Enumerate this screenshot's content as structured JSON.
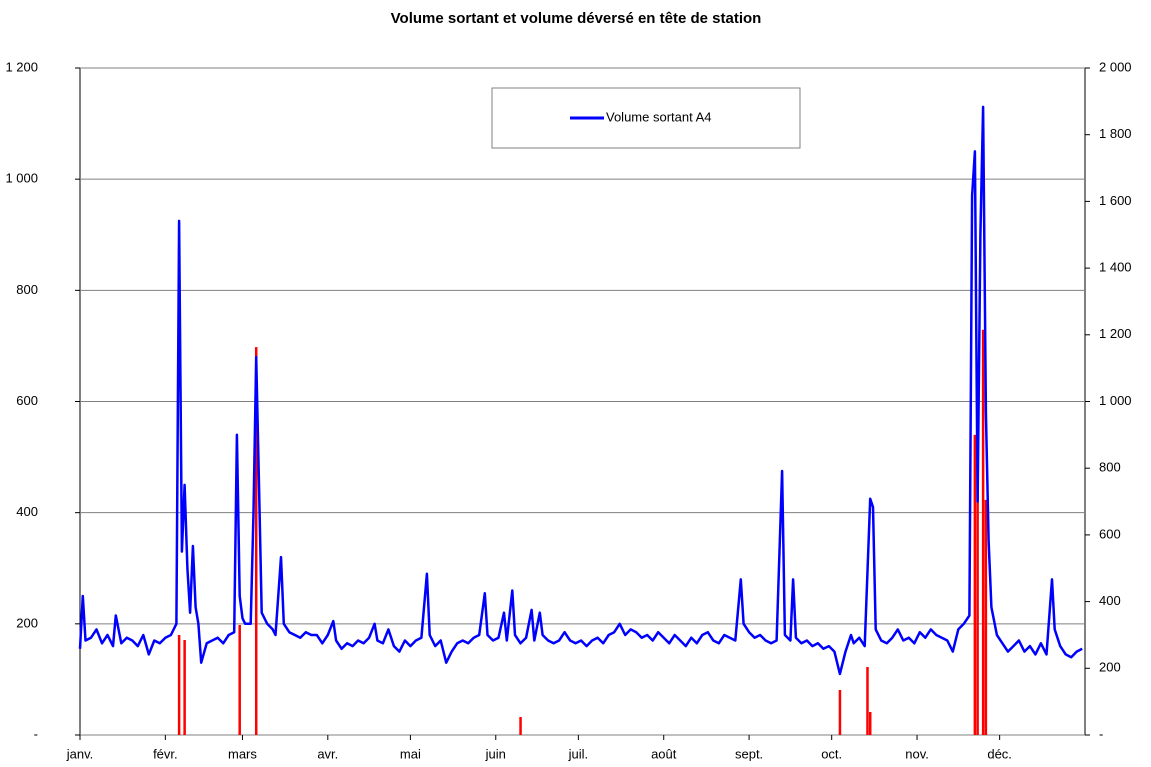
{
  "chart_data": {
    "type": "line",
    "title": "Volume sortant et volume déversé en tête de station",
    "xlim": [
      0,
      365
    ],
    "xticks": [
      {
        "value": 0,
        "label": "janv."
      },
      {
        "value": 31,
        "label": "févr."
      },
      {
        "value": 59,
        "label": "mars"
      },
      {
        "value": 90,
        "label": "avr."
      },
      {
        "value": 120,
        "label": "mai"
      },
      {
        "value": 151,
        "label": "juin"
      },
      {
        "value": 181,
        "label": "juil."
      },
      {
        "value": 212,
        "label": "août"
      },
      {
        "value": 243,
        "label": "sept."
      },
      {
        "value": 273,
        "label": "oct."
      },
      {
        "value": 304,
        "label": "nov."
      },
      {
        "value": 334,
        "label": "déc."
      }
    ],
    "ylim": [
      0,
      1200
    ],
    "yticks": [
      {
        "value": 0,
        "label": "-"
      },
      200,
      400,
      600,
      800,
      {
        "value": 1000,
        "label": "1 000"
      },
      {
        "value": 1200,
        "label": "1 200"
      }
    ],
    "y2lim": [
      0,
      2000
    ],
    "y2ticks": [
      {
        "value": 0,
        "label": "-"
      },
      200,
      400,
      600,
      800,
      {
        "value": 1000,
        "label": "1 000"
      },
      {
        "value": 1200,
        "label": "1 200"
      },
      {
        "value": 1400,
        "label": "1 400"
      },
      {
        "value": 1600,
        "label": "1 600"
      },
      {
        "value": 1800,
        "label": "1 800"
      },
      {
        "value": 2000,
        "label": "2 000"
      }
    ],
    "grid": true,
    "legend": "top",
    "series": [
      {
        "name": "Volume sortant A4",
        "color": "#0000ff",
        "x": [
          0,
          1,
          2,
          4,
          6,
          8,
          10,
          12,
          13,
          15,
          17,
          19,
          21,
          23,
          25,
          27,
          29,
          31,
          33,
          35,
          36,
          37,
          38,
          39,
          40,
          41,
          42,
          43,
          44,
          46,
          48,
          50,
          52,
          54,
          56,
          57,
          58,
          59,
          60,
          62,
          63,
          64,
          65,
          66,
          68,
          70,
          71,
          73,
          74,
          76,
          78,
          80,
          82,
          84,
          86,
          88,
          90,
          92,
          93,
          95,
          97,
          99,
          101,
          103,
          105,
          107,
          108,
          110,
          112,
          114,
          116,
          118,
          120,
          122,
          124,
          126,
          127,
          129,
          131,
          133,
          135,
          137,
          139,
          141,
          143,
          145,
          147,
          148,
          150,
          152,
          154,
          155,
          157,
          158,
          160,
          162,
          164,
          165,
          167,
          168,
          170,
          172,
          174,
          176,
          178,
          180,
          182,
          184,
          186,
          188,
          190,
          192,
          194,
          196,
          198,
          200,
          202,
          204,
          206,
          208,
          210,
          212,
          214,
          216,
          218,
          220,
          222,
          224,
          226,
          228,
          230,
          232,
          234,
          236,
          238,
          240,
          241,
          243,
          245,
          247,
          249,
          251,
          253,
          255,
          256,
          258,
          259,
          260,
          262,
          264,
          266,
          268,
          270,
          272,
          274,
          276,
          278,
          280,
          281,
          283,
          285,
          287,
          288,
          289,
          291,
          293,
          295,
          297,
          299,
          301,
          303,
          305,
          307,
          309,
          311,
          313,
          315,
          317,
          319,
          321,
          323,
          324,
          325,
          326,
          327,
          328,
          329,
          330,
          331,
          333,
          335,
          337,
          339,
          341,
          343,
          345,
          347,
          349,
          351,
          353,
          354,
          356,
          358,
          360,
          362,
          364
        ],
        "values": [
          155,
          250,
          170,
          175,
          190,
          165,
          180,
          160,
          215,
          165,
          175,
          170,
          160,
          180,
          145,
          170,
          165,
          175,
          180,
          200,
          925,
          330,
          450,
          300,
          220,
          340,
          230,
          200,
          130,
          165,
          170,
          175,
          165,
          180,
          185,
          540,
          250,
          210,
          200,
          200,
          400,
          680,
          450,
          220,
          200,
          190,
          180,
          320,
          200,
          185,
          180,
          175,
          185,
          180,
          180,
          165,
          180,
          205,
          170,
          155,
          165,
          160,
          170,
          165,
          175,
          200,
          170,
          165,
          190,
          160,
          150,
          170,
          160,
          170,
          175,
          290,
          180,
          160,
          170,
          130,
          150,
          165,
          170,
          165,
          175,
          180,
          255,
          180,
          170,
          175,
          220,
          170,
          260,
          180,
          165,
          175,
          225,
          170,
          220,
          180,
          170,
          165,
          170,
          185,
          170,
          165,
          170,
          160,
          170,
          175,
          165,
          180,
          185,
          200,
          180,
          190,
          185,
          175,
          180,
          170,
          185,
          175,
          165,
          180,
          170,
          160,
          175,
          165,
          180,
          185,
          170,
          165,
          180,
          175,
          170,
          280,
          200,
          185,
          175,
          180,
          170,
          165,
          170,
          475,
          180,
          170,
          280,
          175,
          165,
          170,
          160,
          165,
          155,
          160,
          150,
          110,
          150,
          180,
          165,
          175,
          160,
          425,
          410,
          190,
          170,
          165,
          175,
          190,
          170,
          175,
          165,
          185,
          175,
          190,
          180,
          175,
          170,
          150,
          190,
          200,
          215,
          970,
          1050,
          420,
          900,
          1130,
          580,
          350,
          230,
          180,
          165,
          150,
          160,
          170,
          150,
          160,
          145,
          165,
          145,
          280,
          190,
          160,
          145,
          140,
          150,
          155
        ]
      },
      {
        "color": "#ff0000",
        "axis": "y2",
        "x": [
          36,
          38,
          58,
          64,
          160,
          276,
          286,
          287,
          325,
          326,
          328,
          329
        ],
        "values": [
          300,
          285,
          330,
          1163,
          54,
          135,
          204,
          69,
          900,
          900,
          1215,
          705
        ]
      }
    ]
  }
}
